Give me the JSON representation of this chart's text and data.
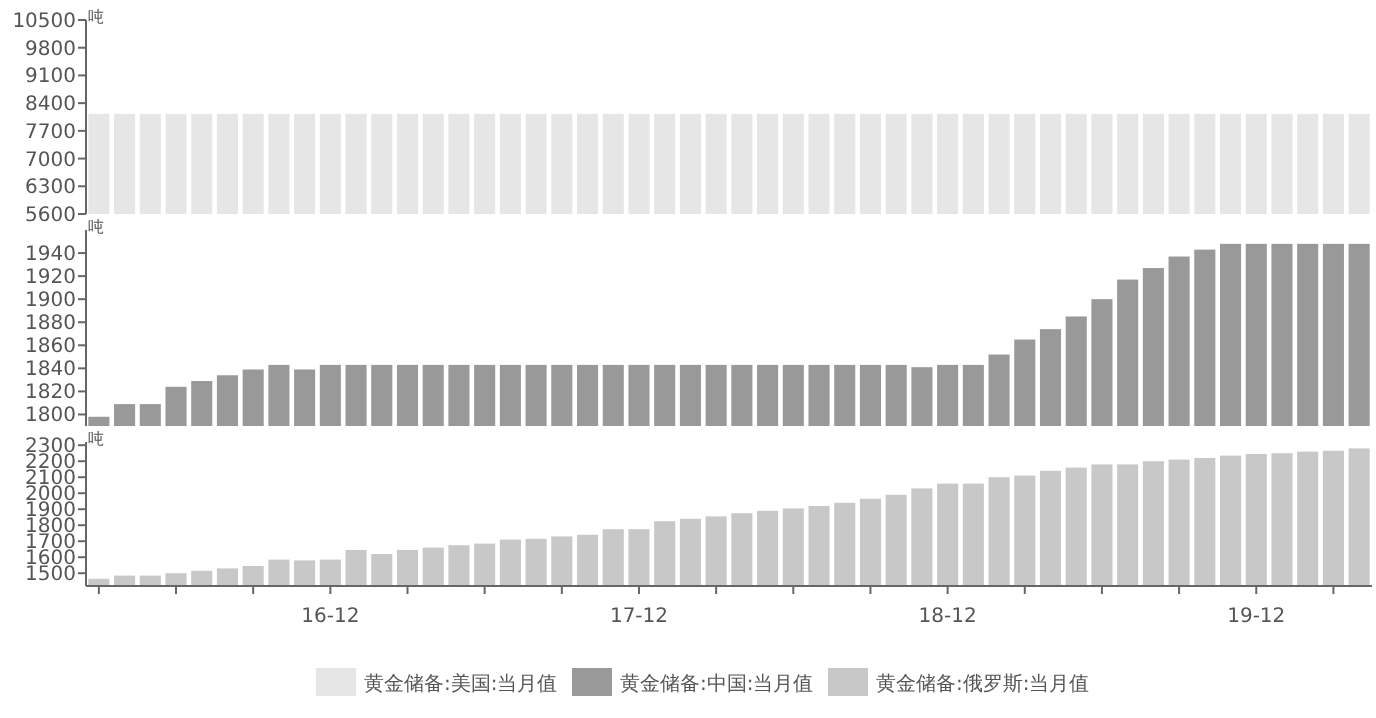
{
  "chart_data": [
    {
      "type": "bar",
      "ylabel": "吨",
      "tick_labels": "y",
      "legend": "bottom",
      "ylim": [
        5600,
        10500
      ],
      "yticks": [
        5600,
        6300,
        7000,
        7700,
        8400,
        9100,
        9800,
        10500
      ],
      "categories": [
        null,
        null,
        null,
        null,
        null,
        null,
        null,
        null,
        null,
        null,
        null,
        null,
        null,
        null,
        null,
        null,
        null,
        null,
        null,
        null,
        null,
        null,
        null,
        null,
        null,
        null,
        null,
        null,
        null,
        null,
        null,
        null,
        null,
        null,
        null,
        null,
        null,
        null,
        null,
        null,
        null,
        null,
        null,
        null,
        null,
        null,
        null,
        null,
        null,
        null
      ],
      "series": [
        {
          "name": "黄金储备:美国:当月值",
          "color": "#e6e6e6",
          "values": [
            8130,
            8130,
            8130,
            8130,
            8130,
            8130,
            8130,
            8130,
            8130,
            8130,
            8130,
            8130,
            8130,
            8130,
            8130,
            8130,
            8130,
            8130,
            8130,
            8130,
            8130,
            8130,
            8130,
            8130,
            8130,
            8130,
            8130,
            8130,
            8130,
            8130,
            8130,
            8130,
            8130,
            8130,
            8130,
            8130,
            8130,
            8130,
            8130,
            8130,
            8130,
            8130,
            8130,
            8130,
            8130,
            8130,
            8130,
            8130,
            8130,
            8130
          ]
        }
      ]
    },
    {
      "type": "bar",
      "ylabel": "吨",
      "tick_labels": "y",
      "legend": "bottom",
      "ylim": [
        1790,
        1960
      ],
      "yticks": [
        1800,
        1820,
        1840,
        1860,
        1880,
        1900,
        1920,
        1940
      ],
      "categories": [
        null,
        null,
        null,
        null,
        null,
        null,
        null,
        null,
        null,
        null,
        null,
        null,
        null,
        null,
        null,
        null,
        null,
        null,
        null,
        null,
        null,
        null,
        null,
        null,
        null,
        null,
        null,
        null,
        null,
        null,
        null,
        null,
        null,
        null,
        null,
        null,
        null,
        null,
        null,
        null,
        null,
        null,
        null,
        null,
        null,
        null,
        null,
        null,
        null,
        null
      ],
      "series": [
        {
          "name": "黄金储备:中国:当月值",
          "color": "#999999",
          "values": [
            1798,
            1809,
            1809,
            1824,
            1829,
            1834,
            1839,
            1843,
            1839,
            1843,
            1843,
            1843,
            1843,
            1843,
            1843,
            1843,
            1843,
            1843,
            1843,
            1843,
            1843,
            1843,
            1843,
            1843,
            1843,
            1843,
            1843,
            1843,
            1843,
            1843,
            1843,
            1843,
            1841,
            1843,
            1843,
            1852,
            1865,
            1874,
            1885,
            1900,
            1917,
            1927,
            1937,
            1943,
            1948,
            1948,
            1948,
            1948,
            1948,
            1948
          ]
        }
      ]
    },
    {
      "type": "bar",
      "ylabel": "吨",
      "legend": "bottom",
      "ylim": [
        1420,
        2320
      ],
      "yticks": [
        1500,
        1600,
        1700,
        1800,
        1900,
        2000,
        2100,
        2200,
        2300
      ],
      "categories": [
        null,
        null,
        null,
        null,
        null,
        null,
        null,
        null,
        null,
        "16-12",
        null,
        null,
        null,
        null,
        null,
        null,
        null,
        null,
        null,
        null,
        null,
        "17-12",
        null,
        null,
        null,
        null,
        null,
        null,
        null,
        null,
        null,
        null,
        null,
        "18-12",
        null,
        null,
        null,
        null,
        null,
        null,
        null,
        null,
        null,
        null,
        null,
        "19-12",
        null,
        null,
        null,
        null
      ],
      "series": [
        {
          "name": "黄金储备:俄罗斯:当月值",
          "color": "#c8c8c8",
          "values": [
            1465,
            1485,
            1485,
            1500,
            1515,
            1530,
            1545,
            1585,
            1580,
            1585,
            1645,
            1620,
            1645,
            1660,
            1675,
            1685,
            1710,
            1715,
            1730,
            1740,
            1775,
            1775,
            1825,
            1840,
            1855,
            1875,
            1890,
            1905,
            1920,
            1940,
            1965,
            1990,
            2030,
            2060,
            2060,
            2100,
            2110,
            2140,
            2160,
            2180,
            2180,
            2200,
            2210,
            2220,
            2235,
            2245,
            2250,
            2260,
            2265,
            2280
          ]
        }
      ]
    }
  ]
}
